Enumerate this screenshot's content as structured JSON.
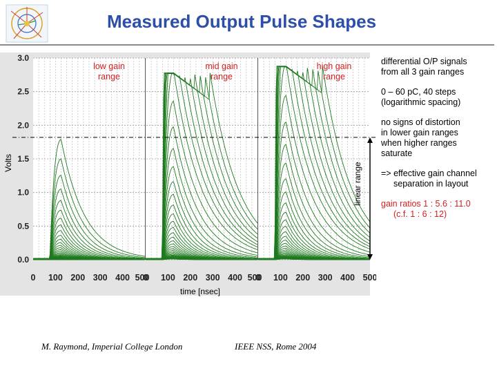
{
  "page": {
    "title": "Measured Output Pulse Shapes",
    "notes": [
      {
        "lines": [
          "differential O/P signals",
          "from all 3 gain ranges"
        ],
        "color": "#000000"
      },
      {
        "lines": [
          "0 – 60 pC, 40 steps",
          "(logarithmic spacing)"
        ],
        "color": "#000000"
      },
      {
        "lines": [
          "no signs of distortion",
          "in lower gain ranges",
          "when higher ranges",
          "saturate"
        ],
        "color": "#000000"
      },
      {
        "lines": [
          "=> effective gain channel",
          "separation in layout"
        ],
        "color": "#000000"
      },
      {
        "lines": [
          "gain ratios 1 : 5.6 : 11.0",
          "(c.f. 1 : 6 : 12)"
        ],
        "color": "#d42020"
      }
    ],
    "footer_left": "M. Raymond, Imperial College London",
    "footer_right": "IEEE NSS, Rome 2004"
  },
  "chart_data": {
    "type": "line",
    "ylabel": "Volts",
    "xlabel": "time [nsec]",
    "ylim": [
      0.0,
      3.0
    ],
    "yticks": [
      "0.0",
      "0.5",
      "1.0",
      "1.5",
      "2.0",
      "2.5",
      "3.0"
    ],
    "xlim": [
      0,
      500
    ],
    "xticks": [
      "0",
      "100",
      "200",
      "300",
      "400",
      "500"
    ],
    "grid": true,
    "line_color": "#1e7a1e",
    "steps": 40,
    "linear_range_label": "linear range",
    "linear_range_limit": 1.82,
    "panels": [
      {
        "label_lines": [
          "low gain",
          "range"
        ],
        "peak_time": 125,
        "max_peak": 1.79,
        "saturation": null,
        "baseline": 0.0
      },
      {
        "label_lines": [
          "mid gain",
          "range"
        ],
        "peak_time": 125,
        "max_peak": 2.78,
        "saturation": 2.78,
        "baseline": 0.0
      },
      {
        "label_lines": [
          "high gain",
          "range"
        ],
        "peak_time": 125,
        "max_peak": 2.88,
        "saturation": 2.88,
        "baseline": 0.0
      }
    ]
  }
}
